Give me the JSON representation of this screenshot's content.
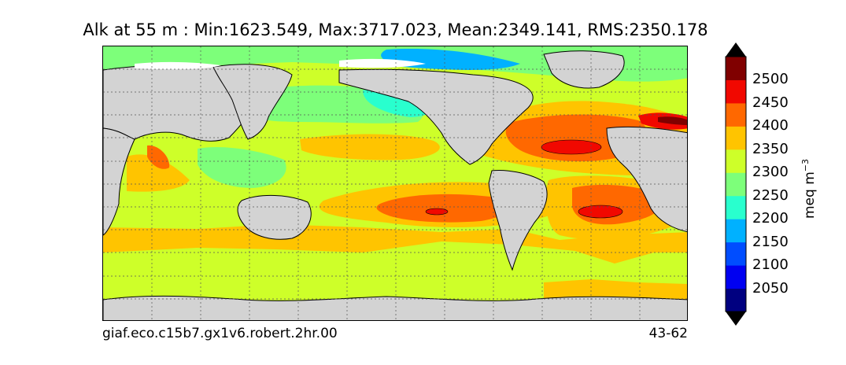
{
  "title": "Alk at 55 m : Min:1623.549, Max:3717.023, Mean:2349.141, RMS:2350.178",
  "case_name": "giaf.eco.c15b7.gx1v6.robert.2hr.00",
  "years": "43-62",
  "colorbar": {
    "units_base": "meq m",
    "units_exp": "−3",
    "ticks": [
      "2500",
      "2450",
      "2400",
      "2350",
      "2300",
      "2250",
      "2200",
      "2150",
      "2100",
      "2050"
    ],
    "colors": [
      "#000080",
      "#0000f1",
      "#004dff",
      "#00b1ff",
      "#29ffce",
      "#7dff7a",
      "#ceff29",
      "#ffc400",
      "#ff6800",
      "#f10800",
      "#800000"
    ]
  },
  "map": {
    "land_color": "#d3d3d3",
    "ice_color": "#ffffff",
    "grid_style": "dashed"
  }
}
